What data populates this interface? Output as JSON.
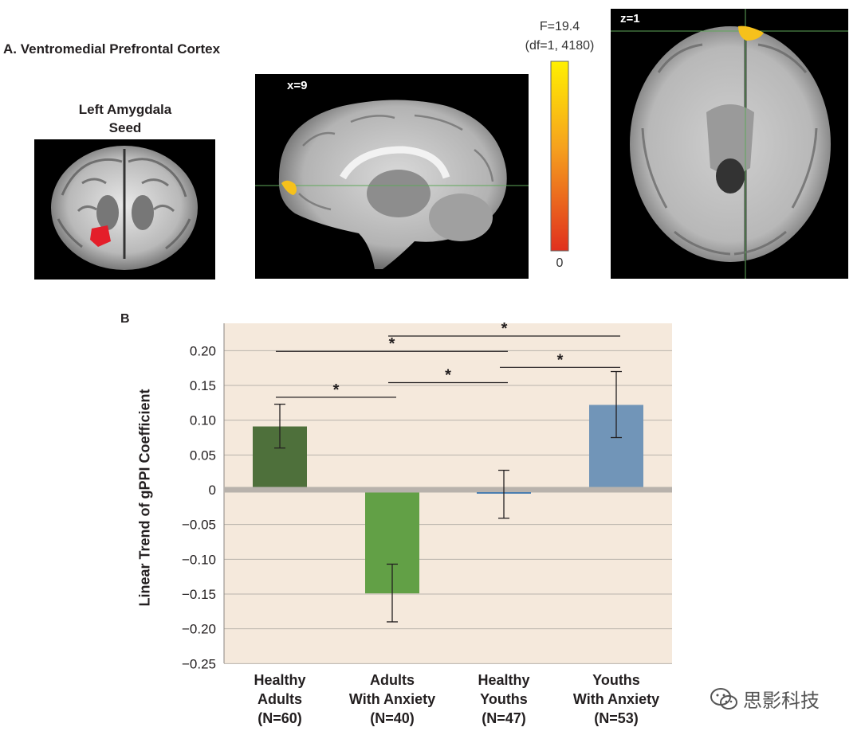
{
  "panel_a": {
    "title": "A. Ventromedial Prefrontal Cortex",
    "seed_title_line1": "Left Amygdala",
    "seed_title_line2": "Seed",
    "sagittal_label": "x=9",
    "axial_label": "z=1",
    "colorbar": {
      "title_line1": "F=19.4",
      "title_line2": "(df=1, 4180)",
      "min_label": "0",
      "color_top": "#ffee00",
      "color_bottom": "#e0301e"
    }
  },
  "panel_b_label": "B",
  "watermark": "思影科技",
  "chart_data": {
    "type": "bar",
    "ylabel": "Linear Trend of gPPI Coefficient",
    "ylim": [
      -0.25,
      0.22
    ],
    "yticks": [
      0.2,
      0.15,
      0.1,
      0.05,
      0,
      -0.05,
      -0.1,
      -0.15,
      -0.2,
      -0.25
    ],
    "ytick_labels": [
      "0.20",
      "0.15",
      "0.10",
      "0.05",
      "0",
      "−0.05",
      "−0.10",
      "−0.15",
      "−0.20",
      "−0.25"
    ],
    "grid": true,
    "background": "#f5e9dc",
    "categories": [
      {
        "lines": [
          "Healthy",
          "Adults",
          "(N=60)"
        ],
        "value": 0.091,
        "err_low": 0.06,
        "err_high": 0.123,
        "color": "#4e703b"
      },
      {
        "lines": [
          "Adults",
          "With Anxiety",
          "(N=40)"
        ],
        "value": -0.149,
        "err_low": -0.19,
        "err_high": -0.107,
        "color": "#62a046"
      },
      {
        "lines": [
          "Healthy",
          "Youths",
          "(N=47)"
        ],
        "value": -0.005,
        "err_low": -0.041,
        "err_high": 0.028,
        "color": "#4a7eb0"
      },
      {
        "lines": [
          "Youths",
          "With Anxiety",
          "(N=53)"
        ],
        "value": 0.122,
        "err_low": 0.075,
        "err_high": 0.17,
        "color": "#7195b8"
      }
    ],
    "significance": [
      {
        "from": 0,
        "to": 1,
        "y": 0.133,
        "label": "*"
      },
      {
        "from": 1,
        "to": 3,
        "y": 0.221,
        "label": "*"
      },
      {
        "from": 0,
        "to": 2,
        "y": 0.199,
        "label": "*"
      },
      {
        "from": 1,
        "to": 2,
        "y": 0.154,
        "label": "*"
      },
      {
        "from": 2,
        "to": 3,
        "y": 0.176,
        "label": "*"
      }
    ]
  }
}
